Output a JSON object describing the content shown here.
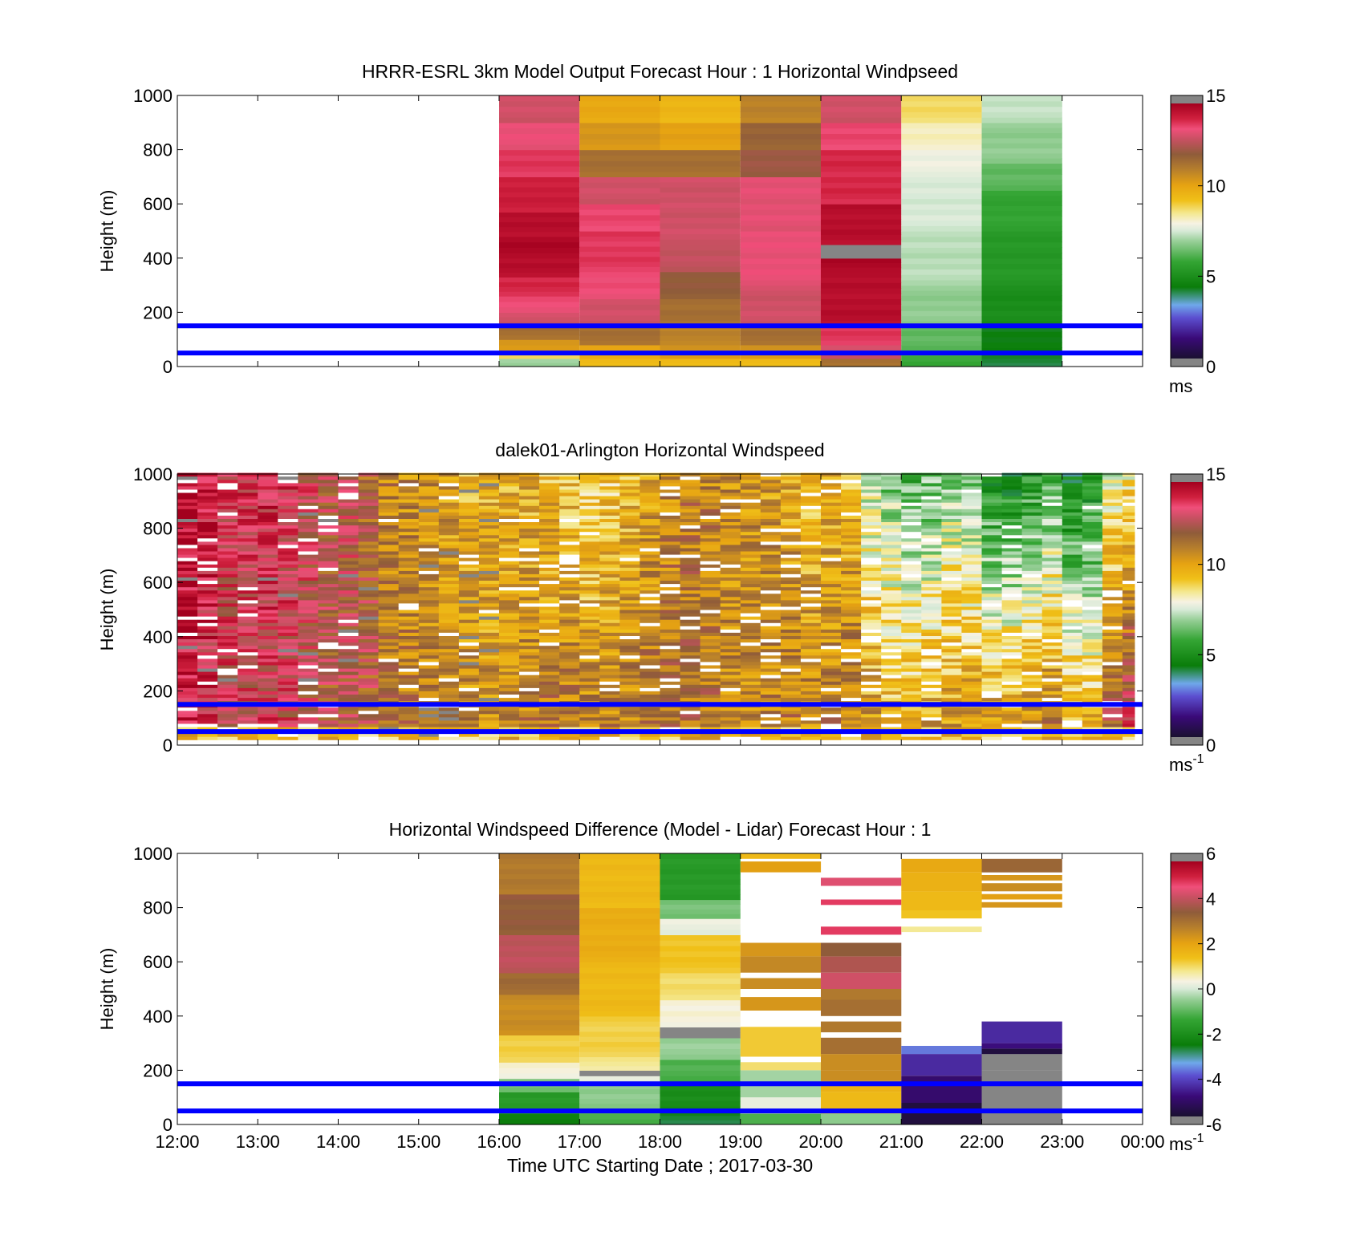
{
  "chart_data": [
    {
      "type": "heatmap",
      "title": "HRRR-ESRL 3km Model Output   Forecast Hour : 1 Horizontal Windpseed",
      "ylabel": "Height (m)",
      "ylim": [
        0,
        1000
      ],
      "yticks": [
        "0",
        "200",
        "400",
        "600",
        "800",
        "1000"
      ],
      "xlim_hours": [
        12,
        24
      ],
      "colorbar": {
        "range": [
          0,
          15
        ],
        "ticks": [
          "0",
          "5",
          "10",
          "15"
        ],
        "unit": "ms",
        "unit_sup": ""
      },
      "reference_lines_m": [
        50,
        150
      ],
      "columns": [
        {
          "start": 16,
          "end": 17,
          "z": [
            [
              0,
              30,
              7
            ],
            [
              30,
              60,
              9
            ],
            [
              60,
              100,
              10.5
            ],
            [
              100,
              150,
              11.5
            ],
            [
              150,
              200,
              13
            ],
            [
              200,
              260,
              13.5
            ],
            [
              260,
              330,
              14
            ],
            [
              330,
              400,
              14.6
            ],
            [
              400,
              480,
              14.8
            ],
            [
              480,
              570,
              14.6
            ],
            [
              570,
              700,
              14.2
            ],
            [
              700,
              800,
              13.8
            ],
            [
              800,
              900,
              13.4
            ],
            [
              900,
              1000,
              13
            ]
          ]
        },
        {
          "start": 17,
          "end": 18,
          "z": [
            [
              0,
              30,
              9.5
            ],
            [
              30,
              80,
              10
            ],
            [
              80,
              150,
              11.5
            ],
            [
              150,
              250,
              13
            ],
            [
              250,
              350,
              13.5
            ],
            [
              350,
              500,
              13.8
            ],
            [
              500,
              600,
              13.6
            ],
            [
              600,
              700,
              13
            ],
            [
              700,
              800,
              11.5
            ],
            [
              800,
              900,
              10.5
            ],
            [
              900,
              1000,
              10
            ]
          ]
        },
        {
          "start": 18,
          "end": 19,
          "z": [
            [
              0,
              30,
              9.5
            ],
            [
              30,
              80,
              10.5
            ],
            [
              80,
              150,
              11
            ],
            [
              150,
              250,
              11.5
            ],
            [
              250,
              350,
              12
            ],
            [
              350,
              450,
              12.8
            ],
            [
              450,
              550,
              13
            ],
            [
              550,
              700,
              13
            ],
            [
              700,
              800,
              11.5
            ],
            [
              800,
              900,
              10.2
            ],
            [
              900,
              1000,
              9.6
            ]
          ]
        },
        {
          "start": 19,
          "end": 20,
          "z": [
            [
              0,
              30,
              9.5
            ],
            [
              30,
              80,
              10.5
            ],
            [
              80,
              150,
              11.5
            ],
            [
              150,
              300,
              13
            ],
            [
              300,
              500,
              13.4
            ],
            [
              500,
              700,
              13.3
            ],
            [
              700,
              800,
              12.2
            ],
            [
              800,
              900,
              11.8
            ],
            [
              900,
              1000,
              11
            ]
          ]
        },
        {
          "start": 20,
          "end": 21,
          "z": [
            [
              0,
              30,
              11.5
            ],
            [
              30,
              80,
              13
            ],
            [
              80,
              150,
              13.8
            ],
            [
              150,
              350,
              14.6
            ],
            [
              350,
              400,
              14.8
            ],
            [
              400,
              450,
              null
            ],
            [
              450,
              600,
              14.6
            ],
            [
              600,
              800,
              14
            ],
            [
              800,
              900,
              13.6
            ],
            [
              900,
              1000,
              13
            ]
          ]
        },
        {
          "start": 21,
          "end": 22,
          "z": [
            [
              0,
              60,
              5.8
            ],
            [
              60,
              150,
              6.2
            ],
            [
              150,
              300,
              6.8
            ],
            [
              300,
              500,
              7.2
            ],
            [
              500,
              700,
              7.5
            ],
            [
              700,
              800,
              7.8
            ],
            [
              800,
              900,
              8.2
            ],
            [
              900,
              1000,
              8.8
            ]
          ]
        },
        {
          "start": 22,
          "end": 23,
          "z": [
            [
              0,
              30,
              4
            ],
            [
              30,
              150,
              4.2
            ],
            [
              150,
              300,
              4.8
            ],
            [
              300,
              500,
              5.2
            ],
            [
              500,
              650,
              5.6
            ],
            [
              650,
              750,
              6.2
            ],
            [
              750,
              900,
              6.8
            ],
            [
              900,
              1000,
              7.3
            ]
          ]
        }
      ]
    },
    {
      "type": "heatmap",
      "title": "dalek01-Arlington  Horizontal Windspeed",
      "ylabel": "Height (m)",
      "ylim": [
        0,
        1000
      ],
      "yticks": [
        "0",
        "200",
        "400",
        "600",
        "800",
        "1000"
      ],
      "xlim_hours": [
        12,
        24
      ],
      "colorbar": {
        "range": [
          0,
          15
        ],
        "ticks": [
          "0",
          "5",
          "10",
          "15"
        ],
        "unit": "ms",
        "unit_sup": "-1"
      },
      "reference_lines_m": [
        50,
        150
      ],
      "time_bins": [
        [
          12.0,
          12.25,
          15.0,
          14.0
        ],
        [
          12.25,
          12.5,
          14.2,
          13.5
        ],
        [
          12.5,
          12.75,
          13.4,
          13.2
        ],
        [
          12.75,
          13.0,
          13.6,
          13.0
        ],
        [
          13.0,
          13.25,
          13.9,
          13.3
        ],
        [
          13.25,
          13.5,
          13.6,
          13.1
        ],
        [
          13.5,
          13.75,
          13.0,
          12.8
        ],
        [
          13.75,
          14.0,
          12.5,
          12.2
        ],
        [
          14.0,
          14.25,
          12.8,
          12.4
        ],
        [
          14.25,
          14.5,
          12.0,
          12.2
        ],
        [
          14.5,
          14.75,
          11.0,
          11.5
        ],
        [
          14.75,
          15.0,
          10.8,
          11.2
        ],
        [
          15.0,
          15.25,
          10.5,
          11.0
        ],
        [
          15.25,
          15.5,
          10.2,
          11.0
        ],
        [
          15.5,
          15.75,
          9.8,
          10.8
        ],
        [
          15.75,
          16.0,
          9.6,
          10.8
        ],
        [
          16.0,
          16.25,
          9.7,
          11.0
        ],
        [
          16.25,
          16.5,
          9.8,
          11.3
        ],
        [
          16.5,
          16.75,
          9.5,
          11.5
        ],
        [
          16.75,
          17.0,
          9.2,
          11.6
        ],
        [
          17.0,
          17.25,
          8.6,
          11.3
        ],
        [
          17.25,
          17.5,
          9.0,
          11.2
        ],
        [
          17.5,
          17.75,
          9.6,
          11.2
        ],
        [
          17.75,
          18.0,
          10.2,
          11.4
        ],
        [
          18.0,
          18.25,
          10.8,
          11.6
        ],
        [
          18.25,
          18.5,
          11.2,
          11.5
        ],
        [
          18.5,
          18.75,
          11.0,
          11.3
        ],
        [
          18.75,
          19.0,
          10.6,
          11.0
        ],
        [
          19.0,
          19.25,
          10.5,
          10.9
        ],
        [
          19.25,
          19.5,
          10.3,
          11.2
        ],
        [
          19.5,
          19.75,
          10.0,
          11.3
        ],
        [
          19.75,
          20.0,
          9.5,
          11.0
        ],
        [
          20.0,
          20.25,
          9.8,
          11.2
        ],
        [
          20.25,
          20.5,
          9.6,
          11.5
        ],
        [
          20.5,
          20.75,
          7.2,
          10.8
        ],
        [
          20.75,
          21.0,
          6.5,
          10.2
        ],
        [
          21.0,
          21.25,
          6.0,
          10.2
        ],
        [
          21.25,
          21.5,
          6.2,
          10.5
        ],
        [
          21.5,
          21.75,
          6.8,
          10.6
        ],
        [
          21.75,
          22.0,
          6.4,
          10.8
        ],
        [
          22.0,
          22.25,
          4.8,
          10.8
        ],
        [
          22.25,
          22.5,
          4.6,
          11.0
        ],
        [
          22.5,
          22.75,
          5.0,
          11.4
        ],
        [
          22.75,
          23.0,
          5.8,
          11.8
        ],
        [
          23.0,
          23.25,
          4.2,
          10.6
        ],
        [
          23.25,
          23.5,
          4.6,
          10.2
        ],
        [
          23.5,
          23.75,
          7.8,
          12.5
        ],
        [
          23.75,
          23.9,
          8.4,
          13.6
        ]
      ]
    },
    {
      "type": "heatmap",
      "title": "Horizontal Windspeed Difference (Model - Lidar) Forecast Hour : 1",
      "ylabel": "Height (m)",
      "xlabel": "Time UTC  Starting Date ; 2017-03-30",
      "ylim": [
        0,
        1000
      ],
      "yticks": [
        "0",
        "200",
        "400",
        "600",
        "800",
        "1000"
      ],
      "xticks": [
        "12:00",
        "13:00",
        "14:00",
        "15:00",
        "16:00",
        "17:00",
        "18:00",
        "19:00",
        "20:00",
        "21:00",
        "22:00",
        "23:00",
        "00:00"
      ],
      "xlim_hours": [
        12,
        24
      ],
      "colorbar": {
        "range": [
          -6,
          6
        ],
        "ticks": [
          "-6",
          "-4",
          "-2",
          "0",
          "2",
          "4",
          "6"
        ],
        "unit": "ms",
        "unit_sup": "-1"
      },
      "reference_lines_m": [
        50,
        150
      ],
      "columns": [
        {
          "start": 16,
          "end": 17,
          "z": [
            [
              0,
              40,
              -2.5
            ],
            [
              40,
              120,
              -1.8
            ],
            [
              120,
              170,
              -0.8
            ],
            [
              170,
              230,
              0.4
            ],
            [
              230,
              330,
              1.2
            ],
            [
              330,
              480,
              2.6
            ],
            [
              480,
              560,
              3.3
            ],
            [
              560,
              700,
              4.2
            ],
            [
              700,
              850,
              3.6
            ],
            [
              850,
              1000,
              3.0
            ]
          ]
        },
        {
          "start": 17,
          "end": 18,
          "z": [
            [
              0,
              60,
              -1.2
            ],
            [
              60,
              150,
              -0.6
            ],
            [
              150,
              180,
              0.2
            ],
            [
              180,
              200,
              null
            ],
            [
              200,
              250,
              0.8
            ],
            [
              250,
              400,
              1.2
            ],
            [
              400,
              600,
              1.6
            ],
            [
              600,
              800,
              1.9
            ],
            [
              800,
              1000,
              1.6
            ]
          ]
        },
        {
          "start": 18,
          "end": 19,
          "z": [
            [
              0,
              50,
              -2.8
            ],
            [
              50,
              160,
              -2.2
            ],
            [
              160,
              240,
              -1.2
            ],
            [
              240,
              320,
              -0.5
            ],
            [
              320,
              360,
              null
            ],
            [
              360,
              460,
              0.4
            ],
            [
              460,
              560,
              1.0
            ],
            [
              560,
              700,
              1.4
            ],
            [
              700,
              760,
              0.2
            ],
            [
              760,
              830,
              -0.8
            ],
            [
              830,
              1000,
              -1.8
            ]
          ]
        }
      ]
    }
  ]
}
